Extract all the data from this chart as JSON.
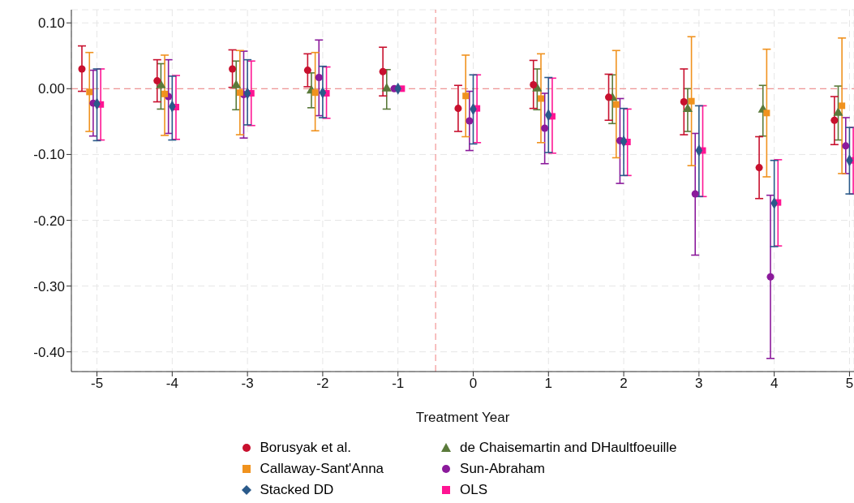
{
  "chart_data": {
    "type": "scatter",
    "xlabel": "Treatment Year",
    "xlim": [
      -5.34,
      5.06
    ],
    "xticks": [
      -5,
      -4,
      -3,
      -2,
      -1,
      0,
      1,
      2,
      3,
      4,
      5
    ],
    "ylim": [
      -0.43,
      0.12
    ],
    "yticks": [
      {
        "value": 0.1,
        "label": "0.10"
      },
      {
        "value": 0,
        "label": "0.00"
      },
      {
        "value": -0.1,
        "label": "-0.10"
      },
      {
        "value": -0.2,
        "label": "-0.20"
      },
      {
        "value": -0.3,
        "label": "-0.30"
      },
      {
        "value": -0.4,
        "label": "-0.40"
      }
    ],
    "grid": true,
    "legend": "bottom",
    "ref_lines": [
      {
        "axis": "y",
        "value": 0,
        "color": "#f08080",
        "line_style": "dashed"
      },
      {
        "axis": "x",
        "value": -0.5,
        "color": "#f08080",
        "line_style": "dashed"
      }
    ],
    "series": [
      {
        "name": "Borusyak et al.",
        "color": "#c8102e",
        "marker": "circle",
        "x": [
          -5.2,
          -4.2,
          -3.2,
          -2.2,
          -1.2,
          -0.2,
          0.8,
          1.8,
          2.8,
          3.8,
          4.8
        ],
        "values": [
          0.03,
          0.012,
          0.03,
          0.028,
          0.026,
          -0.03,
          0.006,
          -0.013,
          -0.02,
          -0.12,
          -0.048
        ],
        "errors": [
          [
            -0.004,
            0.065
          ],
          [
            -0.02,
            0.044
          ],
          [
            0.002,
            0.059
          ],
          [
            0.003,
            0.053
          ],
          [
            -0.011,
            0.063
          ],
          [
            -0.065,
            0.005
          ],
          [
            -0.03,
            0.043
          ],
          [
            -0.048,
            0.022
          ],
          [
            -0.07,
            0.03
          ],
          [
            -0.167,
            -0.073
          ],
          [
            -0.085,
            -0.012
          ]
        ]
      },
      {
        "name": "Callaway-Sant'Anna",
        "color": "#f0921e",
        "marker": "square",
        "x": [
          -5.1,
          -4.1,
          -3.1,
          -2.1,
          null,
          -0.1,
          0.9,
          1.9,
          2.9,
          3.9,
          4.9
        ],
        "values": [
          -0.005,
          -0.008,
          -0.006,
          -0.006,
          null,
          -0.011,
          -0.015,
          -0.024,
          -0.019,
          -0.037,
          -0.026
        ],
        "errors": [
          [
            -0.065,
            0.055
          ],
          [
            -0.071,
            0.051
          ],
          [
            -0.07,
            0.058
          ],
          [
            -0.064,
            0.055
          ],
          null,
          [
            -0.073,
            0.051
          ],
          [
            -0.082,
            0.053
          ],
          [
            -0.105,
            0.058
          ],
          [
            -0.117,
            0.079
          ],
          [
            -0.134,
            0.06
          ],
          [
            -0.129,
            0.077
          ]
        ]
      },
      {
        "name": "Stacked DD",
        "color": "#2a5a8a",
        "marker": "diamond",
        "x": [
          -5,
          -4,
          -3,
          -2,
          -1,
          0,
          1,
          2,
          3,
          4,
          5
        ],
        "values": [
          -0.023,
          -0.027,
          -0.007,
          -0.006,
          0,
          -0.031,
          -0.04,
          -0.08,
          -0.094,
          -0.174,
          -0.109
        ],
        "errors": [
          [
            -0.079,
            0.03
          ],
          [
            -0.078,
            0.019
          ],
          [
            -0.055,
            0.044
          ],
          [
            -0.044,
            0.034
          ],
          null,
          [
            -0.084,
            0.021
          ],
          [
            -0.097,
            0.017
          ],
          [
            -0.132,
            -0.03
          ],
          [
            -0.164,
            -0.026
          ],
          [
            -0.24,
            -0.109
          ],
          [
            -0.16,
            -0.059
          ]
        ]
      },
      {
        "name": "de Chaisemartin and DHaultfoeuille",
        "color": "#5a7a3a",
        "marker": "triangle",
        "x": [
          null,
          -4.15,
          -3.15,
          -2.15,
          -1.15,
          null,
          0.85,
          1.85,
          2.85,
          3.85,
          4.85
        ],
        "values": [
          null,
          0.005,
          0.005,
          -0.003,
          0,
          null,
          0,
          -0.014,
          -0.031,
          -0.032,
          -0.037
        ],
        "errors": [
          null,
          [
            -0.031,
            0.038
          ],
          [
            -0.032,
            0.042
          ],
          [
            -0.029,
            0.024
          ],
          [
            -0.031,
            0.029
          ],
          null,
          [
            -0.032,
            0.03
          ],
          [
            -0.053,
            0.021
          ],
          [
            -0.065,
            0.0
          ],
          [
            -0.072,
            0.005
          ],
          [
            -0.078,
            0.004
          ]
        ]
      },
      {
        "name": "Sun-Abraham",
        "color": "#8b1a9b",
        "marker": "circle",
        "x": [
          -5.05,
          -4.05,
          -3.05,
          -2.05,
          -1.05,
          -0.05,
          0.95,
          1.95,
          2.95,
          3.95,
          4.95
        ],
        "values": [
          -0.022,
          -0.012,
          -0.009,
          0.017,
          0,
          -0.049,
          -0.06,
          -0.079,
          -0.16,
          -0.286,
          -0.087
        ],
        "errors": [
          [
            -0.072,
            0.028
          ],
          [
            -0.068,
            0.044
          ],
          [
            -0.075,
            0.057
          ],
          [
            -0.041,
            0.074
          ],
          null,
          [
            -0.094,
            -0.004
          ],
          [
            -0.114,
            -0.007
          ],
          [
            -0.144,
            -0.015
          ],
          [
            -0.253,
            -0.068
          ],
          [
            -0.41,
            -0.162
          ],
          [
            -0.129,
            -0.044
          ]
        ]
      },
      {
        "name": "OLS",
        "color": "#ff1493",
        "marker": "square",
        "x": [
          -4.95,
          -3.95,
          -2.95,
          -1.95,
          -0.95,
          0.05,
          1.05,
          2.05,
          3.05,
          4.05,
          5.05
        ],
        "values": [
          -0.024,
          -0.028,
          -0.007,
          -0.007,
          0,
          -0.03,
          -0.042,
          -0.081,
          -0.094,
          -0.173,
          -0.109
        ],
        "errors": [
          [
            -0.078,
            0.03
          ],
          [
            -0.077,
            0.02
          ],
          [
            -0.056,
            0.042
          ],
          [
            -0.045,
            0.033
          ],
          null,
          [
            -0.082,
            0.021
          ],
          [
            -0.098,
            0.016
          ],
          [
            -0.132,
            -0.031
          ],
          [
            -0.164,
            -0.026
          ],
          [
            -0.239,
            -0.108
          ],
          [
            -0.16,
            -0.059
          ]
        ]
      }
    ]
  }
}
